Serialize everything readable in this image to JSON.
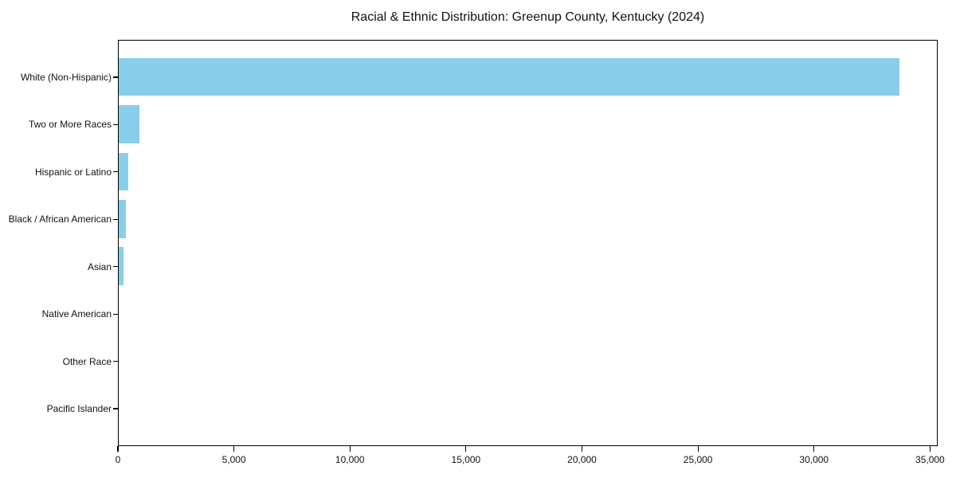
{
  "title": "Racial & Ethnic Distribution: Greenup County, Kentucky (2024)",
  "chart_data": {
    "type": "bar",
    "orientation": "horizontal",
    "title": "Racial & Ethnic Distribution: Greenup County, Kentucky (2024)",
    "xlabel": "",
    "ylabel": "",
    "categories": [
      "White (Non-Hispanic)",
      "Two or More Races",
      "Hispanic or Latino",
      "Black / African American",
      "Asian",
      "Native American",
      "Other Race",
      "Pacific Islander"
    ],
    "values": [
      33700,
      900,
      410,
      310,
      210,
      0,
      0,
      0
    ],
    "bar_color": "#87CEEB",
    "xlim": [
      0,
      35330
    ],
    "xticks": [
      0,
      5000,
      10000,
      15000,
      20000,
      25000,
      30000,
      35000
    ],
    "xtick_labels": [
      "0",
      "5,000",
      "10,000",
      "15,000",
      "20,000",
      "25,000",
      "30,000",
      "35,000"
    ],
    "grid": false,
    "legend": null,
    "spine_color": "#000000",
    "text_color": "#111111"
  }
}
